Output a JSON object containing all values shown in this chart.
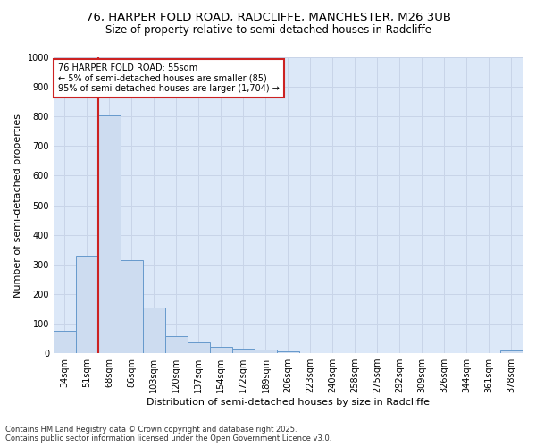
{
  "title_line1": "76, HARPER FOLD ROAD, RADCLIFFE, MANCHESTER, M26 3UB",
  "title_line2": "Size of property relative to semi-detached houses in Radcliffe",
  "xlabel": "Distribution of semi-detached houses by size in Radcliffe",
  "ylabel": "Number of semi-detached properties",
  "categories": [
    "34sqm",
    "51sqm",
    "68sqm",
    "86sqm",
    "103sqm",
    "120sqm",
    "137sqm",
    "154sqm",
    "172sqm",
    "189sqm",
    "206sqm",
    "223sqm",
    "240sqm",
    "258sqm",
    "275sqm",
    "292sqm",
    "309sqm",
    "326sqm",
    "344sqm",
    "361sqm",
    "378sqm"
  ],
  "values": [
    75,
    330,
    805,
    315,
    155,
    57,
    35,
    22,
    16,
    11,
    7,
    0,
    0,
    0,
    0,
    0,
    0,
    0,
    0,
    0,
    8
  ],
  "bar_color": "#cddcf0",
  "bar_edge_color": "#6699cc",
  "vline_color": "#cc2222",
  "vline_x_index": 1,
  "annotation_text": "76 HARPER FOLD ROAD: 55sqm\n← 5% of semi-detached houses are smaller (85)\n95% of semi-detached houses are larger (1,704) →",
  "annotation_box_facecolor": "#ffffff",
  "annotation_box_edgecolor": "#cc2222",
  "ylim": [
    0,
    1000
  ],
  "yticks": [
    0,
    100,
    200,
    300,
    400,
    500,
    600,
    700,
    800,
    900,
    1000
  ],
  "grid_color": "#c8d4e8",
  "background_color": "#dce8f8",
  "footnote": "Contains HM Land Registry data © Crown copyright and database right 2025.\nContains public sector information licensed under the Open Government Licence v3.0.",
  "title_fontsize": 9.5,
  "subtitle_fontsize": 8.5,
  "ylabel_fontsize": 8,
  "xlabel_fontsize": 8,
  "tick_fontsize": 7,
  "annotation_fontsize": 7,
  "footnote_fontsize": 6
}
